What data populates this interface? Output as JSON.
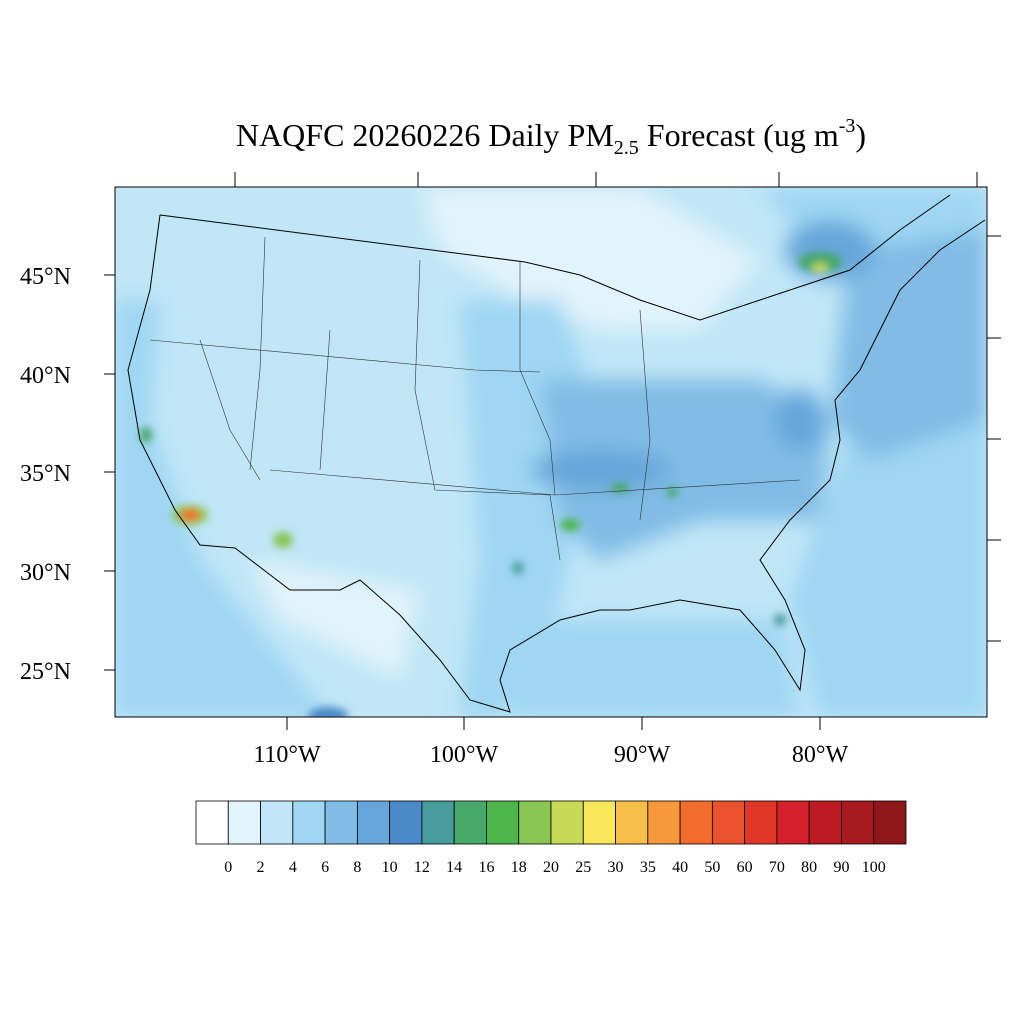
{
  "title": {
    "prefix": "NAQFC 20260226 Daily PM",
    "subscript": "2.5",
    "middle": " Forecast (ug m",
    "superscript": "-3",
    "suffix": ")"
  },
  "lat_labels": [
    "45°N",
    "40°N",
    "35°N",
    "30°N",
    "25°N"
  ],
  "lon_labels": [
    "110°W",
    "100°W",
    "90°W",
    "80°W"
  ],
  "colorbar": {
    "levels": [
      0,
      2,
      4,
      6,
      8,
      10,
      12,
      14,
      16,
      18,
      20,
      25,
      30,
      35,
      40,
      50,
      60,
      70,
      80,
      90,
      100
    ],
    "colors": [
      "#ffffff",
      "#e1f3fb",
      "#c0e6f7",
      "#9fd6f3",
      "#80bce5",
      "#66a6da",
      "#4a8ac8",
      "#479c9c",
      "#47a86c",
      "#4cb64a",
      "#88c552",
      "#c7da57",
      "#f8e75b",
      "#f7be48",
      "#f6983b",
      "#f26c2c",
      "#e9522c",
      "#df3627",
      "#d3202a",
      "#bc1b24",
      "#a61a1f",
      "#8f1619"
    ]
  }
}
